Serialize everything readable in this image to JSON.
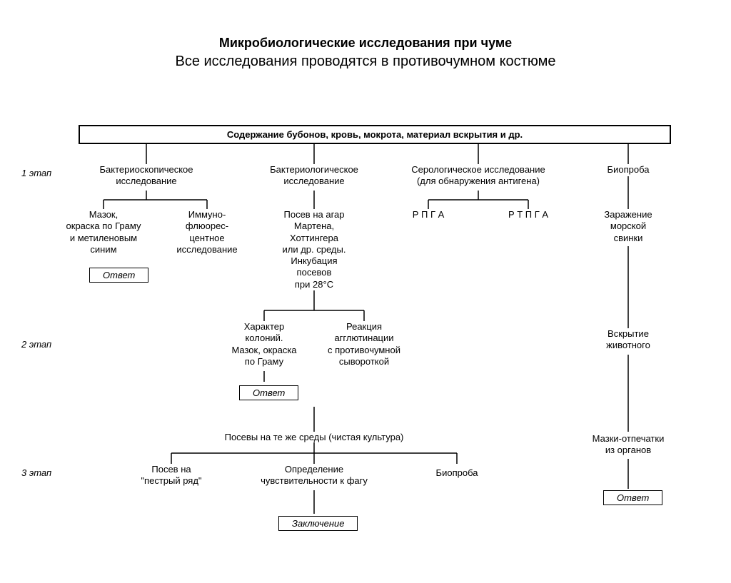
{
  "title": "Микробиологические исследования при чуме",
  "subtitle": "Все исследования проводятся в противочумном костюме",
  "header_box": "Содержание бубонов, кровь, мокрота, материал вскрытия и др.",
  "stages": {
    "s1": "1 этап",
    "s2": "2 этап",
    "s3": "3 этап"
  },
  "n": {
    "bacterioscopic": "Бактериоскопическое\nисследование",
    "bacteriologic": "Бактериологическое\nисследование",
    "serologic": "Серологическое исследование\n(для обнаружения антигена)",
    "bioproba": "Биопроба",
    "smear_gram": "Мазок,\nокраска по Граму\nи метиленовым\nсиним",
    "immunofluor": "Иммуно-\nфлюорес-\nцентное\nисследование",
    "martena": "Посев на агар\nМартена,\nХоттингера\nили др. среды.\nИнкубация\nпосевов\nпри 28°С",
    "rpga": "Р П Г А",
    "rtpga": "Р Т П Г А",
    "guineapig": "Заражение\nморской\nсвинки",
    "colony": "Характер\nколоний.\nМазок, окраска\nпо Граму",
    "agglut": "Реакция\nагглютинации\nс противочумной\nсывороткой",
    "autopsy": "Вскрытие\nживотного",
    "pure": "Посевы на те же среды (чистая культура)",
    "motley": "Посев на\n\"пестрый ряд\"",
    "phage": "Определение\nчувствительности к фагу",
    "bioproba2": "Биопроба",
    "imprints": "Мазки-отпечатки\nиз органов"
  },
  "answers": {
    "a1": "Ответ",
    "a2": "Ответ",
    "a3": "Ответ",
    "concl": "Заключение"
  },
  "style": {
    "type": "flowchart",
    "line_color": "#000000",
    "line_width": 1.5,
    "background": "#ffffff",
    "font_family": "Arial",
    "title_fontsize": 18,
    "subtitle_fontsize": 20,
    "node_fontsize": 13
  }
}
